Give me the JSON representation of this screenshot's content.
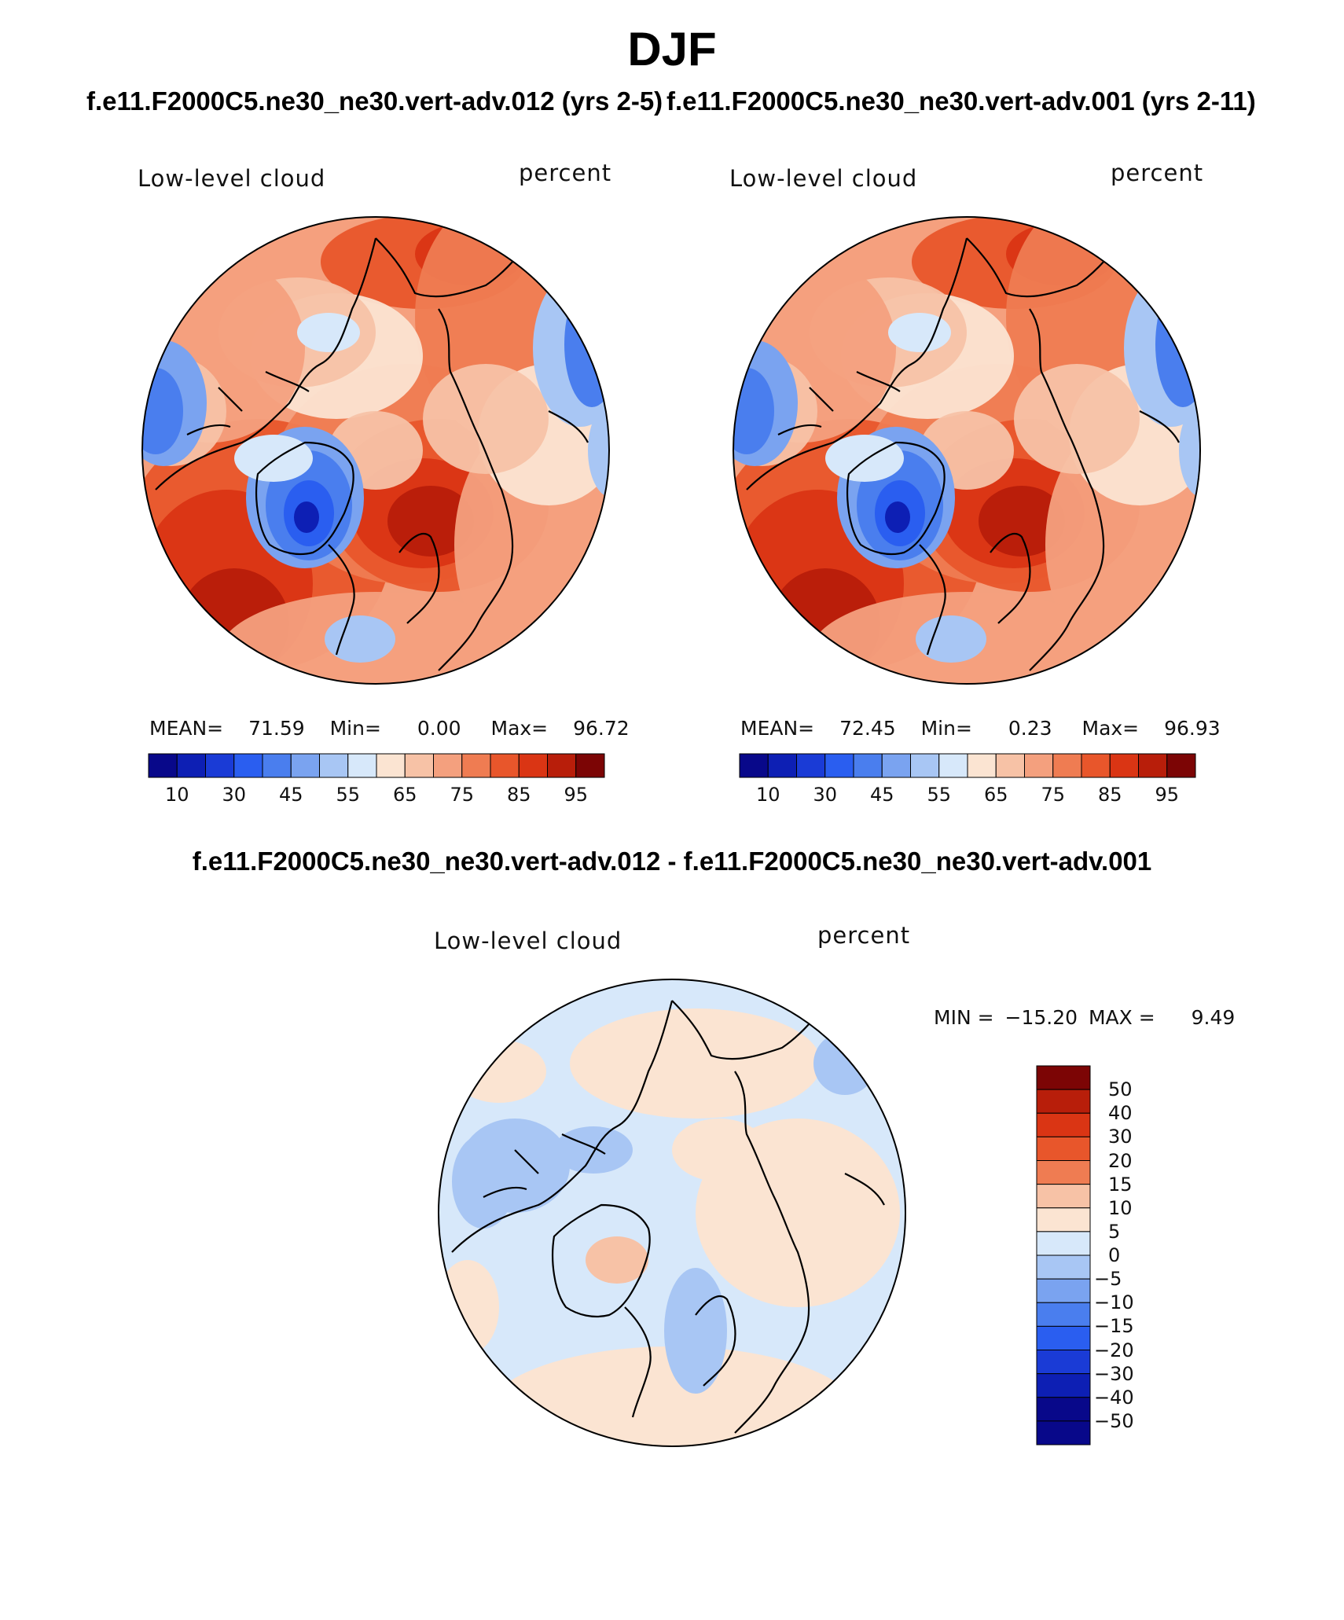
{
  "title": "DJF",
  "panels": [
    {
      "case_title": "f.e11.F2000C5.ne30_ne30.vert-adv.012 (yrs 2-5)",
      "variable": "Low-level cloud",
      "units": "percent",
      "stats": {
        "mean_label": "MEAN=",
        "mean": "71.59",
        "min_label": "Min=",
        "min": "0.00",
        "max_label": "Max=",
        "max": "96.72"
      }
    },
    {
      "case_title": "f.e11.F2000C5.ne30_ne30.vert-adv.001 (yrs 2-11)",
      "variable": "Low-level cloud",
      "units": "percent",
      "stats": {
        "mean_label": "MEAN=",
        "mean": "72.45",
        "min_label": "Min=",
        "min": "0.23",
        "max_label": "Max=",
        "max": "96.93"
      }
    },
    {
      "case_title": "f.e11.F2000C5.ne30_ne30.vert-adv.012 - f.e11.F2000C5.ne30_ne30.vert-adv.001",
      "variable": "Low-level cloud",
      "units": "percent",
      "stats": {
        "min_label": "MIN =",
        "min": "-15.20",
        "max_label": "MAX =",
        "max": "9.49"
      }
    }
  ],
  "chart_data": [
    {
      "type": "heatmap",
      "projection": "north polar stereographic",
      "variable": "Low-level cloud",
      "units": "percent",
      "mean": 71.59,
      "min": 0.0,
      "max": 96.72,
      "colorbar": {
        "levels": [
          5,
          10,
          20,
          30,
          40,
          45,
          50,
          55,
          60,
          65,
          70,
          75,
          80,
          85,
          90,
          95
        ],
        "tick_labels": [
          "10",
          "30",
          "45",
          "55",
          "65",
          "75",
          "85",
          "95"
        ],
        "colors": [
          "#08088a",
          "#0d1fb4",
          "#1a3bd6",
          "#2a5ef0",
          "#4a7eee",
          "#7aa3f0",
          "#a8c6f4",
          "#d7e8fa",
          "#fbe4d2",
          "#f7c2a6",
          "#f4a07e",
          "#ef7c52",
          "#e8562b",
          "#da3514",
          "#b81e0a",
          "#7c0505"
        ]
      }
    },
    {
      "type": "heatmap",
      "projection": "north polar stereographic",
      "variable": "Low-level cloud",
      "units": "percent",
      "mean": 72.45,
      "min": 0.23,
      "max": 96.93,
      "colorbar": {
        "levels": [
          5,
          10,
          20,
          30,
          40,
          45,
          50,
          55,
          60,
          65,
          70,
          75,
          80,
          85,
          90,
          95
        ],
        "tick_labels": [
          "10",
          "30",
          "45",
          "55",
          "65",
          "75",
          "85",
          "95"
        ],
        "colors": [
          "#08088a",
          "#0d1fb4",
          "#1a3bd6",
          "#2a5ef0",
          "#4a7eee",
          "#7aa3f0",
          "#a8c6f4",
          "#d7e8fa",
          "#fbe4d2",
          "#f7c2a6",
          "#f4a07e",
          "#ef7c52",
          "#e8562b",
          "#da3514",
          "#b81e0a",
          "#7c0505"
        ]
      }
    },
    {
      "type": "heatmap",
      "projection": "north polar stereographic",
      "variable": "Low-level cloud",
      "units": "percent",
      "min": -15.2,
      "max": 9.49,
      "colorbar": {
        "levels": [
          50,
          40,
          30,
          20,
          15,
          10,
          5,
          0,
          -5,
          -10,
          -15,
          -20,
          -30,
          -40,
          -50
        ],
        "tick_labels": [
          "50",
          "40",
          "30",
          "20",
          "15",
          "10",
          "5",
          "0",
          "−5",
          "−10",
          "−15",
          "−20",
          "−30",
          "−40",
          "−50"
        ],
        "colors": [
          "#7c0505",
          "#b81e0a",
          "#da3514",
          "#e8562b",
          "#ef7c52",
          "#f7c2a6",
          "#fbe4d2",
          "#d7e8fa",
          "#a8c6f4",
          "#7aa3f0",
          "#4a7eee",
          "#2a5ef0",
          "#1a3bd6",
          "#0d1fb4",
          "#08088a"
        ]
      }
    }
  ]
}
